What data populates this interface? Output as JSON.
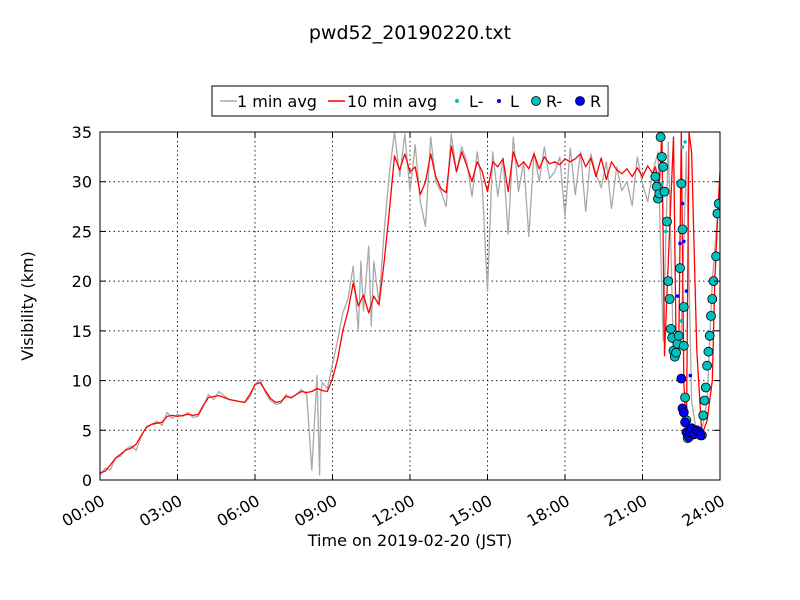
{
  "chart_data": {
    "type": "line",
    "title": "pwd52_20190220.txt",
    "xlabel": "Time on 2019-02-20 (JST)",
    "ylabel": "Visibility (km)",
    "xlim": [
      0,
      24
    ],
    "ylim": [
      0,
      35
    ],
    "x_ticks": [
      0,
      3,
      6,
      9,
      12,
      15,
      18,
      21,
      24
    ],
    "x_tick_labels": [
      "00:00",
      "03:00",
      "06:00",
      "09:00",
      "12:00",
      "15:00",
      "18:00",
      "21:00",
      "24:00"
    ],
    "y_ticks": [
      0,
      5,
      10,
      15,
      20,
      25,
      30,
      35
    ],
    "y_tick_labels": [
      "0",
      "5",
      "10",
      "15",
      "20",
      "25",
      "30",
      "35"
    ],
    "grid": true,
    "legend_position": "top-center",
    "legend": [
      {
        "label": "1 min avg",
        "kind": "line",
        "color": "#a9a9a9"
      },
      {
        "label": "10 min avg",
        "kind": "line",
        "color": "#ff0000"
      },
      {
        "label": "L-",
        "kind": "small-dot",
        "color": "#00bfbf"
      },
      {
        "label": "L",
        "kind": "small-dot",
        "color": "#0000ff"
      },
      {
        "label": "R-",
        "kind": "circle",
        "color": "#00bfbf"
      },
      {
        "label": "R",
        "kind": "circle",
        "color": "#0000ff"
      }
    ],
    "series": [
      {
        "name": "1 min avg",
        "color": "#a9a9a9",
        "x": [
          0,
          0.2,
          0.4,
          0.6,
          0.8,
          1.0,
          1.2,
          1.4,
          1.6,
          1.8,
          2.0,
          2.2,
          2.4,
          2.6,
          2.8,
          3.0,
          3.2,
          3.4,
          3.6,
          3.8,
          4.0,
          4.2,
          4.4,
          4.6,
          4.8,
          5.0,
          5.2,
          5.4,
          5.6,
          5.8,
          6.0,
          6.2,
          6.4,
          6.6,
          6.8,
          7.0,
          7.2,
          7.4,
          7.6,
          7.8,
          8.0,
          8.2,
          8.4,
          8.5,
          8.55,
          8.6,
          8.8,
          9.0,
          9.2,
          9.4,
          9.6,
          9.8,
          10.0,
          10.1,
          10.2,
          10.4,
          10.5,
          10.6,
          10.8,
          11.0,
          11.2,
          11.4,
          11.6,
          11.8,
          12.0,
          12.2,
          12.4,
          12.6,
          12.8,
          13.0,
          13.2,
          13.4,
          13.6,
          13.8,
          14.0,
          14.2,
          14.4,
          14.6,
          14.8,
          15.0,
          15.2,
          15.4,
          15.6,
          15.8,
          16.0,
          16.2,
          16.4,
          16.6,
          16.8,
          17.0,
          17.2,
          17.4,
          17.6,
          17.8,
          18.0,
          18.2,
          18.4,
          18.6,
          18.8,
          19.0,
          19.2,
          19.4,
          19.6,
          19.8,
          20.0,
          20.2,
          20.4,
          20.6,
          20.8,
          21.0,
          21.2,
          21.4,
          21.6,
          21.8,
          22.0,
          22.2,
          22.4,
          22.5,
          22.7,
          22.9,
          23.1,
          23.3,
          23.5,
          23.7,
          23.9,
          24.0
        ],
        "y": [
          0.5,
          1.2,
          1.0,
          2.2,
          2.4,
          3.1,
          3.4,
          3.0,
          4.4,
          5.4,
          5.6,
          5.9,
          5.5,
          6.8,
          6.2,
          6.6,
          6.4,
          6.8,
          6.3,
          6.4,
          7.4,
          8.6,
          8.1,
          8.9,
          8.5,
          8.1,
          8.0,
          7.9,
          7.8,
          8.3,
          9.6,
          10.1,
          8.8,
          8.0,
          7.6,
          7.7,
          8.6,
          8.2,
          8.6,
          9.1,
          8.6,
          1.0,
          10.5,
          0.5,
          8.8,
          9.8,
          9.2,
          11.6,
          14.1,
          16.8,
          18.2,
          21.5,
          15.0,
          22.0,
          17.0,
          23.5,
          15.5,
          22.0,
          17.8,
          25.0,
          30.8,
          35.0,
          30.5,
          34.8,
          29.0,
          33.7,
          28.0,
          25.5,
          34.5,
          30.0,
          29.0,
          27.5,
          34.8,
          31.0,
          33.5,
          32.0,
          28.5,
          33.0,
          29.5,
          19.0,
          33.0,
          28.5,
          32.4,
          24.7,
          34.5,
          29.0,
          32.0,
          24.5,
          33.0,
          30.0,
          33.5,
          30.3,
          31.0,
          32.5,
          26.5,
          33.4,
          28.7,
          33.0,
          27.0,
          32.8,
          30.8,
          29.4,
          32.0,
          27.3,
          31.5,
          29.1,
          30.0,
          27.6,
          32.5,
          29.8,
          28.0,
          31.0,
          33.0,
          14.0,
          34.0,
          12.5,
          13.0,
          15.0,
          33.0,
          8.0,
          4.5,
          5.0,
          8.0,
          20.0,
          26.5,
          30.5
        ]
      },
      {
        "name": "10 min avg",
        "color": "#ff0000",
        "x": [
          0,
          0.2,
          0.4,
          0.6,
          0.8,
          1.0,
          1.2,
          1.4,
          1.6,
          1.8,
          2.0,
          2.2,
          2.4,
          2.6,
          2.8,
          3.0,
          3.2,
          3.4,
          3.6,
          3.8,
          4.0,
          4.2,
          4.4,
          4.6,
          4.8,
          5.0,
          5.2,
          5.4,
          5.6,
          5.8,
          6.0,
          6.2,
          6.4,
          6.6,
          6.8,
          7.0,
          7.2,
          7.4,
          7.6,
          7.8,
          8.0,
          8.2,
          8.4,
          8.6,
          8.8,
          9.0,
          9.2,
          9.4,
          9.6,
          9.8,
          10.0,
          10.2,
          10.4,
          10.6,
          10.8,
          11.0,
          11.2,
          11.4,
          11.6,
          11.8,
          12.0,
          12.2,
          12.4,
          12.6,
          12.8,
          13.0,
          13.2,
          13.4,
          13.6,
          13.8,
          14.0,
          14.2,
          14.4,
          14.6,
          14.8,
          15.0,
          15.2,
          15.4,
          15.6,
          15.8,
          16.0,
          16.2,
          16.4,
          16.6,
          16.8,
          17.0,
          17.2,
          17.4,
          17.6,
          17.8,
          18.0,
          18.2,
          18.4,
          18.6,
          18.8,
          19.0,
          19.2,
          19.4,
          19.6,
          19.8,
          20.0,
          20.2,
          20.4,
          20.6,
          20.8,
          21.0,
          21.2,
          21.4,
          21.5,
          21.65,
          21.75,
          21.85,
          22.0,
          22.2,
          22.3,
          22.4,
          22.5,
          22.6,
          22.7,
          22.8,
          22.9,
          23.1,
          23.3,
          23.5,
          23.7,
          23.8,
          23.9,
          24.0
        ],
        "y": [
          0.7,
          0.9,
          1.5,
          2.2,
          2.6,
          3.0,
          3.2,
          3.6,
          4.5,
          5.3,
          5.6,
          5.7,
          5.8,
          6.4,
          6.5,
          6.4,
          6.5,
          6.6,
          6.5,
          6.6,
          7.5,
          8.3,
          8.4,
          8.5,
          8.3,
          8.1,
          8.0,
          7.9,
          7.8,
          8.6,
          9.6,
          9.8,
          9.0,
          8.2,
          7.8,
          7.9,
          8.4,
          8.3,
          8.6,
          8.9,
          8.8,
          8.9,
          9.2,
          9.0,
          8.9,
          10.2,
          12.2,
          15.0,
          17.0,
          19.8,
          17.5,
          18.6,
          16.8,
          18.5,
          17.6,
          22.0,
          27.0,
          32.6,
          31.2,
          32.8,
          31.0,
          31.5,
          28.7,
          30.0,
          32.8,
          30.5,
          29.3,
          28.9,
          33.6,
          31.0,
          33.0,
          31.6,
          30.0,
          32.0,
          31.0,
          29.0,
          32.0,
          31.5,
          32.3,
          29.0,
          33.0,
          31.5,
          32.0,
          31.3,
          32.8,
          31.3,
          32.5,
          31.8,
          32.0,
          31.7,
          32.3,
          32.0,
          32.3,
          32.8,
          31.5,
          32.4,
          30.5,
          32.4,
          30.2,
          32.0,
          31.2,
          30.8,
          31.3,
          30.5,
          31.4,
          30.5,
          31.6,
          30.8,
          31.5,
          29.5,
          35.0,
          12.5,
          22.0,
          34.5,
          13.5,
          12.8,
          35.0,
          10.0,
          4.5,
          35.0,
          33.0,
          13.0,
          4.5,
          6.0,
          10.0,
          20.0,
          26.0,
          31.0
        ]
      },
      {
        "name": "L-",
        "color": "#00bfbf",
        "x": [
          21.55,
          21.65,
          21.75,
          21.9,
          22.05,
          22.3,
          22.4,
          22.5,
          22.55,
          22.65,
          23.8
        ],
        "y": [
          30.5,
          28.8,
          29.8,
          25.0,
          14.5,
          12.7,
          13.0,
          16.0,
          33.5,
          34.0,
          27.0
        ]
      },
      {
        "name": "L",
        "color": "#0000ff",
        "x": [
          22.35,
          22.45,
          22.55,
          22.6,
          22.7,
          22.85
        ],
        "y": [
          18.5,
          23.8,
          27.8,
          24.0,
          19.0,
          10.5
        ]
      },
      {
        "name": "R-",
        "color": "#00bfbf",
        "x": [
          21.5,
          21.55,
          21.6,
          21.65,
          21.7,
          21.75,
          21.8,
          21.85,
          21.95,
          22.0,
          22.05,
          22.1,
          22.15,
          22.2,
          22.25,
          22.3,
          22.35,
          22.4,
          22.45,
          22.5,
          22.55,
          22.6,
          22.6,
          22.65,
          22.7,
          22.75,
          23.3,
          23.35,
          23.4,
          23.45,
          23.5,
          23.55,
          23.6,
          23.65,
          23.7,
          23.75,
          23.85,
          23.9,
          23.95
        ],
        "y": [
          30.5,
          29.5,
          28.3,
          28.8,
          34.5,
          32.5,
          31.5,
          29.0,
          26.0,
          20.0,
          18.2,
          15.2,
          14.3,
          13.0,
          12.4,
          12.8,
          13.7,
          14.5,
          21.3,
          29.8,
          25.2,
          17.4,
          13.5,
          8.3,
          6.0,
          4.2,
          4.5,
          6.5,
          8.0,
          9.3,
          11.5,
          12.9,
          14.5,
          16.5,
          18.2,
          20.0,
          22.5,
          26.8,
          27.8
        ]
      },
      {
        "name": "R",
        "color": "#0000ff",
        "x": [
          22.5,
          22.55,
          22.6,
          22.65,
          22.7,
          22.8,
          22.85,
          22.9,
          23.0,
          23.1,
          23.2,
          23.25
        ],
        "y": [
          10.2,
          7.2,
          6.8,
          5.8,
          4.8,
          4.3,
          4.8,
          5.2,
          4.6,
          5.0,
          4.8,
          4.5
        ]
      }
    ]
  }
}
